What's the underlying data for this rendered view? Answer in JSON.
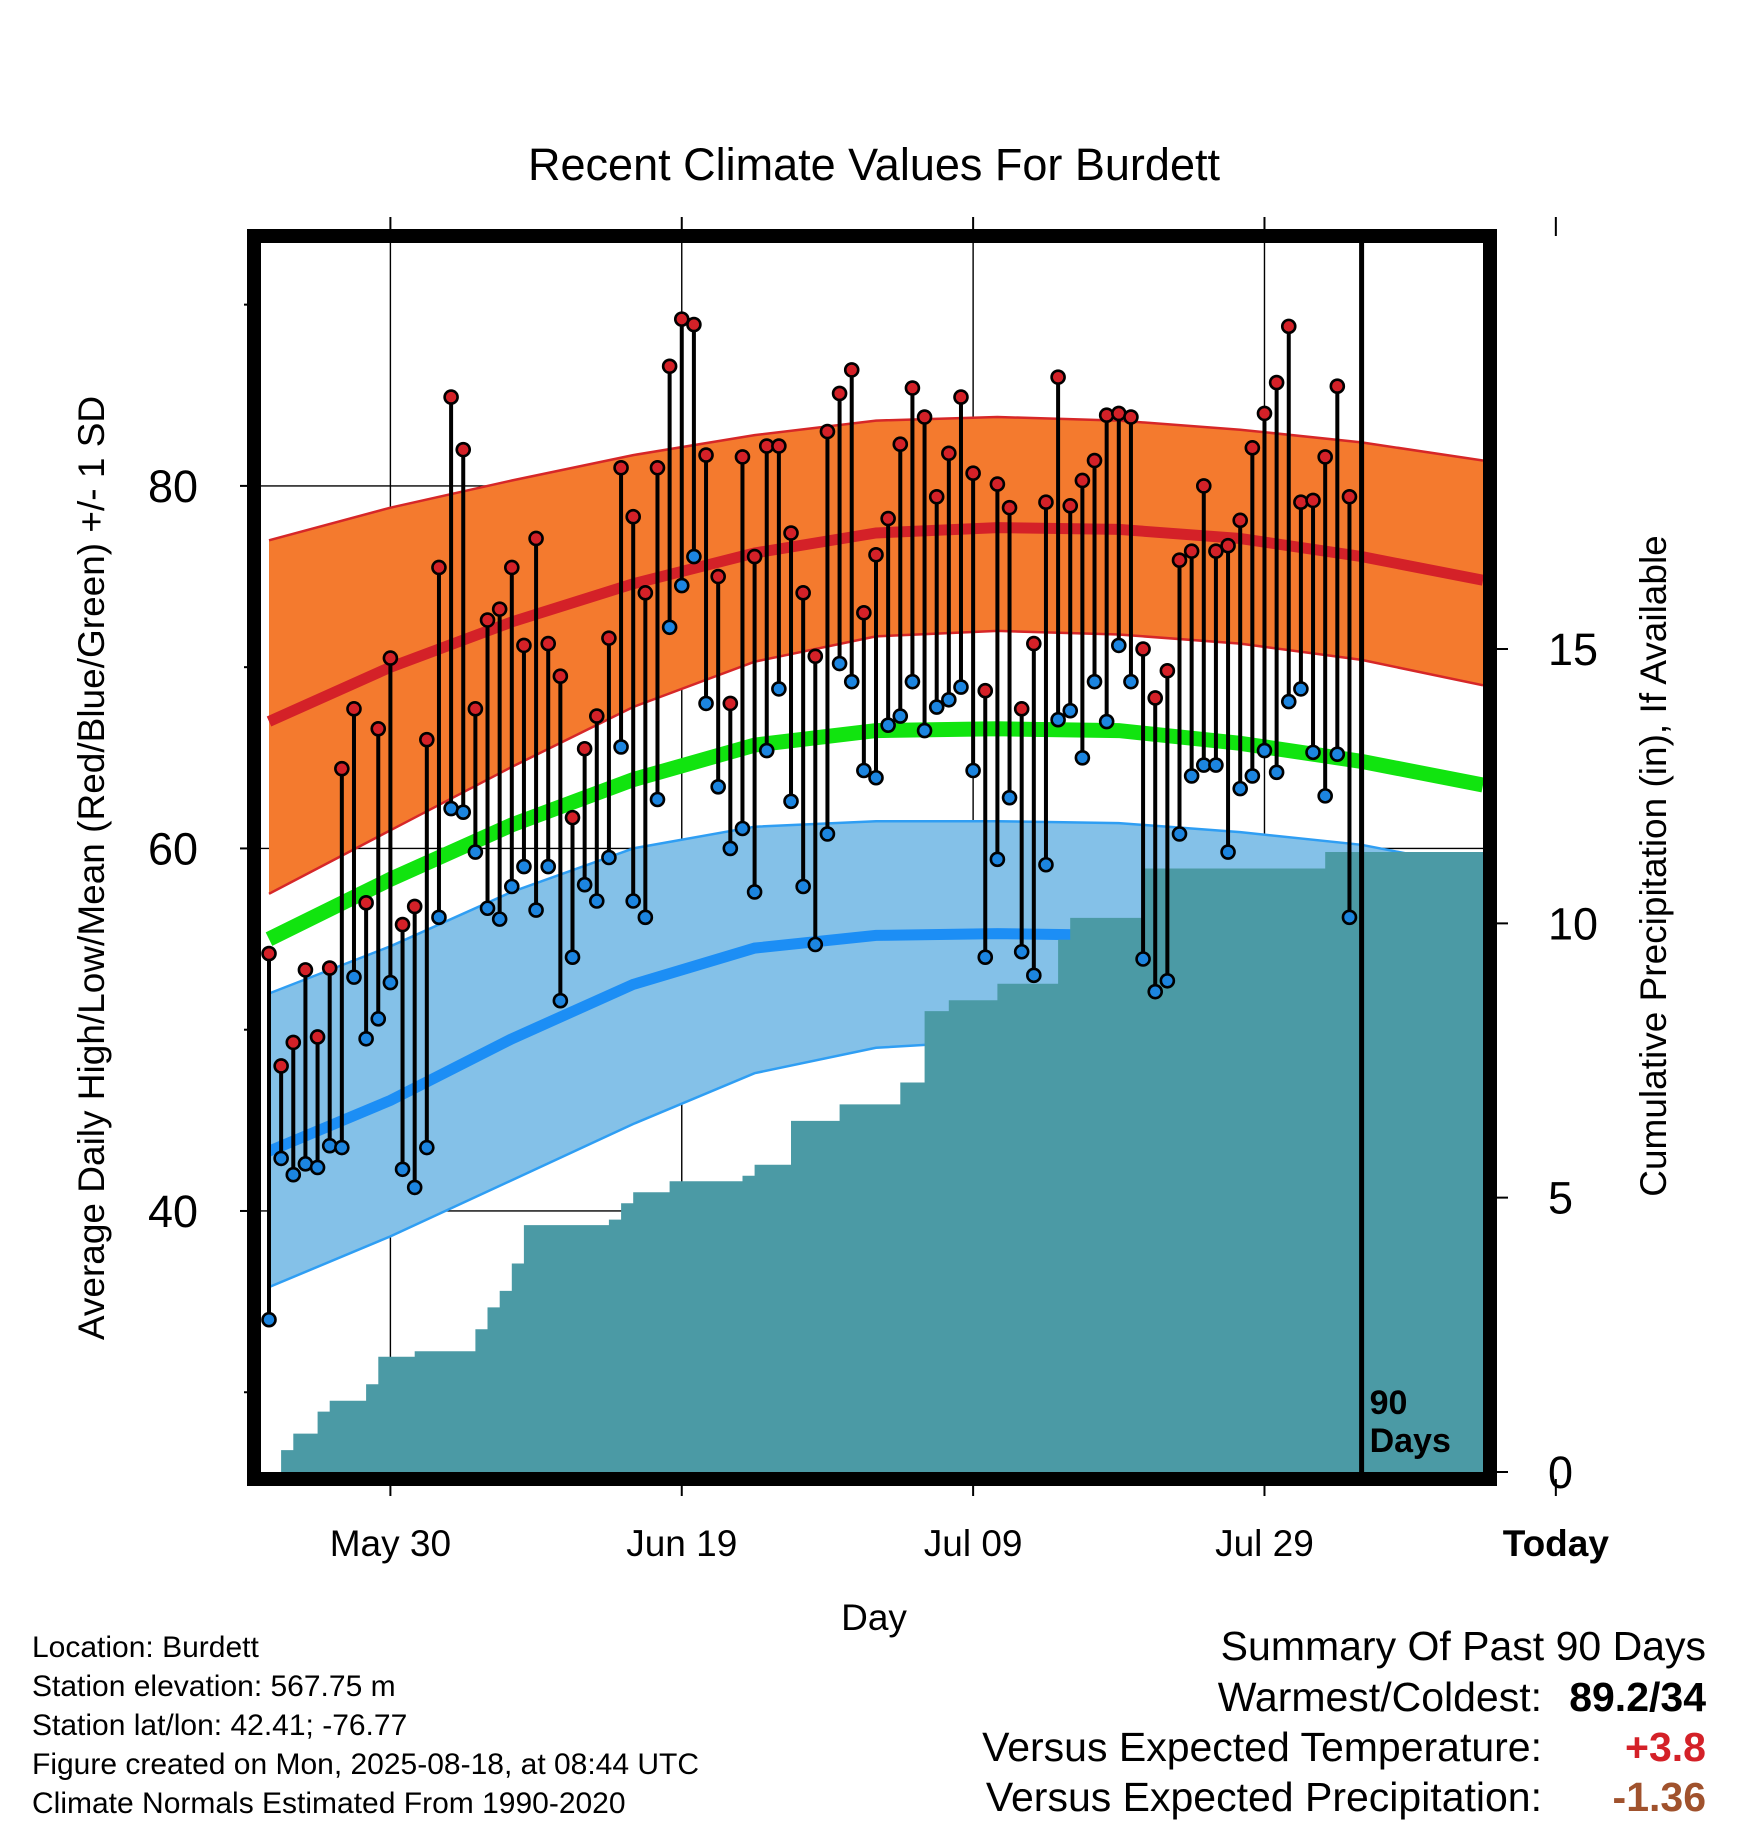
{
  "chart_data": {
    "type": "line",
    "title": "Recent Climate Values For Burdett",
    "xlabel": "Day",
    "ylabel": "Average Daily High/Low/Mean (Red/Blue/Green) +/- 1 SD",
    "y2label": "Cumulative Precipitation (in), If Available",
    "ylim": [
      25.6,
      93.4
    ],
    "y_ticks": [
      40,
      60,
      80
    ],
    "y2lim": [
      0,
      22.4
    ],
    "y2_ticks": [
      0,
      5,
      10,
      15
    ],
    "x_ticks": [
      "May 30",
      "Jun 19",
      "Jul 09",
      "Jul 29",
      "Today"
    ],
    "grid": true,
    "today_marker": {
      "label": "90 Days",
      "day_index": 90
    },
    "days": 90,
    "daily_high": [
      54.2,
      48.0,
      49.3,
      53.3,
      49.6,
      53.4,
      64.4,
      67.7,
      57.0,
      66.6,
      70.5,
      55.8,
      56.8,
      66.0,
      75.5,
      84.9,
      82.0,
      67.7,
      72.6,
      73.2,
      75.5,
      71.2,
      77.1,
      71.3,
      69.5,
      61.7,
      65.5,
      67.3,
      71.6,
      81.0,
      78.3,
      74.1,
      81.0,
      86.6,
      89.2,
      88.9,
      81.7,
      75.0,
      68.0,
      81.6,
      76.1,
      82.2,
      82.2,
      77.4,
      74.1,
      70.6,
      83.0,
      85.1,
      86.4,
      73.0,
      76.2,
      78.2,
      82.3,
      85.4,
      83.8,
      79.4,
      81.8,
      84.9,
      80.7,
      68.7,
      80.1,
      78.8,
      67.7,
      71.3,
      79.1,
      86.0,
      78.9,
      80.3,
      81.4,
      83.9,
      84.0,
      83.8,
      71.0,
      68.3,
      69.8,
      75.9,
      76.4,
      80.0,
      76.4,
      76.7,
      78.1,
      82.1,
      84.0,
      85.7,
      88.8,
      79.1,
      79.2,
      81.6,
      85.5,
      79.4
    ],
    "daily_low": [
      34.0,
      42.9,
      42.0,
      42.6,
      42.4,
      43.6,
      43.5,
      52.9,
      49.5,
      50.6,
      52.6,
      42.3,
      41.3,
      43.5,
      56.2,
      62.2,
      62.0,
      59.8,
      56.7,
      56.1,
      57.9,
      59.0,
      56.6,
      59.0,
      51.6,
      54.0,
      58.0,
      57.1,
      59.5,
      65.6,
      57.1,
      56.2,
      62.7,
      72.2,
      74.5,
      76.1,
      68.0,
      63.4,
      60.0,
      61.1,
      57.6,
      65.4,
      68.8,
      62.6,
      57.9,
      54.7,
      60.8,
      70.2,
      69.2,
      64.3,
      63.9,
      66.8,
      67.3,
      69.2,
      66.5,
      67.8,
      68.2,
      68.9,
      64.3,
      54.0,
      59.4,
      62.8,
      54.3,
      53.0,
      59.1,
      67.1,
      67.6,
      65.0,
      69.2,
      67.0,
      71.2,
      69.2,
      53.9,
      52.1,
      52.7,
      60.8,
      64.0,
      64.6,
      64.6,
      59.8,
      63.3,
      64.0,
      65.4,
      64.2,
      68.1,
      68.8,
      65.3,
      62.9,
      65.2,
      56.2
    ],
    "normals": {
      "high_mean": {
        "x": [
          0,
          10,
          20,
          30,
          40,
          50,
          60,
          70,
          80,
          90,
          100
        ],
        "y": [
          67.0,
          70.0,
          72.5,
          74.6,
          76.3,
          77.4,
          77.7,
          77.6,
          77.1,
          76.1,
          74.8
        ]
      },
      "high_plus_sd": {
        "x": [
          0,
          10,
          20,
          30,
          40,
          50,
          60,
          70,
          80,
          90,
          100
        ],
        "y": [
          77.0,
          78.8,
          80.3,
          81.7,
          82.8,
          83.6,
          83.8,
          83.6,
          83.1,
          82.4,
          81.4
        ]
      },
      "high_minus_sd": {
        "x": [
          0,
          10,
          20,
          30,
          40,
          50,
          60,
          70,
          80,
          90,
          100
        ],
        "y": [
          57.5,
          61.0,
          64.5,
          67.8,
          70.3,
          71.7,
          72.0,
          71.8,
          71.3,
          70.4,
          69.0
        ]
      },
      "mean": {
        "x": [
          0,
          10,
          20,
          30,
          40,
          50,
          60,
          70,
          80,
          90,
          100
        ],
        "y": [
          55.0,
          58.3,
          61.3,
          63.8,
          65.7,
          66.5,
          66.6,
          66.5,
          65.8,
          64.8,
          63.5
        ]
      },
      "low_mean": {
        "x": [
          0,
          10,
          20,
          30,
          40,
          50,
          60,
          70,
          80,
          90,
          100
        ],
        "y": [
          43.3,
          46.1,
          49.5,
          52.5,
          54.5,
          55.2,
          55.3,
          55.2,
          54.8,
          53.8,
          52.2
        ]
      },
      "low_plus_sd": {
        "x": [
          0,
          10,
          20,
          30,
          40,
          50,
          60,
          70,
          80,
          90,
          100
        ],
        "y": [
          52.0,
          54.6,
          57.6,
          60.0,
          61.2,
          61.5,
          61.5,
          61.4,
          60.9,
          60.2,
          58.9
        ]
      },
      "low_minus_sd": {
        "x": [
          0,
          10,
          20,
          30,
          40,
          50,
          60,
          70,
          80,
          90,
          100
        ],
        "y": [
          35.8,
          38.6,
          41.7,
          44.8,
          47.6,
          49.0,
          49.4,
          49.5,
          49.1,
          48.0,
          46.2
        ]
      }
    },
    "precip_cumulative": {
      "x": [
        0,
        1,
        2,
        4,
        5,
        6,
        7,
        8,
        9,
        10,
        11,
        12,
        13,
        14,
        15,
        16,
        17,
        18,
        19,
        20,
        21,
        22,
        23,
        24,
        25,
        26,
        27,
        28,
        29,
        30,
        31,
        32,
        33,
        34,
        35,
        36,
        37,
        38,
        39,
        40,
        41,
        42,
        43,
        44,
        45,
        46,
        47,
        48,
        49,
        50,
        51,
        52,
        53,
        54,
        55,
        56,
        57,
        58,
        59,
        60,
        61,
        62,
        63,
        64,
        65,
        66,
        67,
        68,
        69,
        70,
        71,
        72,
        73,
        74,
        75,
        76,
        77,
        78,
        79,
        80,
        81,
        82,
        83,
        84,
        85,
        86,
        87,
        88,
        89,
        90,
        91,
        92,
        93
      ],
      "y": [
        0,
        0.4,
        0.7,
        1.1,
        1.3,
        1.3,
        1.3,
        1.6,
        2.1,
        2.1,
        2.1,
        2.2,
        2.2,
        2.2,
        2.2,
        2.2,
        2.6,
        3.0,
        3.3,
        3.8,
        4.5,
        4.5,
        4.5,
        4.5,
        4.5,
        4.5,
        4.5,
        4.6,
        4.9,
        5.1,
        5.1,
        5.1,
        5.3,
        5.3,
        5.3,
        5.3,
        5.3,
        5.3,
        5.4,
        5.6,
        5.6,
        5.6,
        6.4,
        6.4,
        6.4,
        6.4,
        6.7,
        6.7,
        6.7,
        6.7,
        6.7,
        7.1,
        7.1,
        8.4,
        8.4,
        8.6,
        8.6,
        8.6,
        8.6,
        8.9,
        8.9,
        8.9,
        8.9,
        8.9,
        9.7,
        10.1,
        10.1,
        10.1,
        10.1,
        10.1,
        10.1,
        11.0,
        11.0,
        11.0,
        11.0,
        11.0,
        11.0,
        11.0,
        11.0,
        11.0,
        11.0,
        11.0,
        11.0,
        11.0,
        11.0,
        11.0,
        11.3,
        11.3,
        11.3,
        11.3,
        11.3,
        11.3,
        11.3
      ]
    },
    "colors": {
      "high_band": "#f47a2e",
      "high_band_edge": "#d62728",
      "high_mean": "#d42128",
      "low_band": "#84c1e8",
      "low_band_edge": "#2f9ef3",
      "low_mean": "#1c8ef5",
      "mean": "#11e40f",
      "precip": "#4b9aa5",
      "high_point": "#d42128",
      "low_point": "#1c85e0"
    }
  },
  "footer": {
    "location": "Location: Burdett",
    "elevation": "Station elevation: 567.75 m",
    "latlon": "Station lat/lon: 42.41; -76.77",
    "created": "Figure created on Mon, 2025-08-18, at 08:44 UTC",
    "normals": "Climate Normals Estimated From 1990-2020"
  },
  "summary": {
    "title": "Summary Of Past 90 Days",
    "warmest_label": "Warmest/Coldest:",
    "warmest_value": "89.2/34",
    "temp_label": "Versus Expected Temperature:",
    "temp_value": "+3.8",
    "temp_color": "#d42128",
    "precip_label": "Versus Expected Precipitation:",
    "precip_value": "-1.36",
    "precip_color": "#a0522d"
  }
}
